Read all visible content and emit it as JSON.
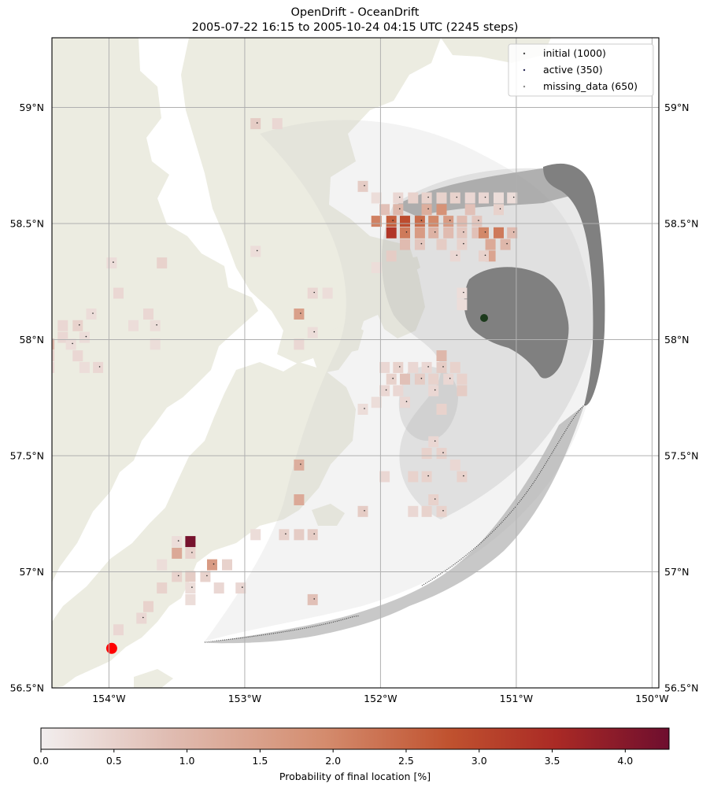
{
  "chart_data": {
    "type": "heatmap",
    "title": "OpenDrift - OceanDrift",
    "subtitle": "2005-07-22 16:15 to 2005-10-24 04:15 UTC (2245 steps)",
    "xlim": [
      -154.42,
      -149.95
    ],
    "ylim": [
      56.5,
      59.3
    ],
    "x_ticks": [
      -154,
      -153,
      -152,
      -151,
      -150
    ],
    "x_tick_labels": [
      "154°W",
      "153°W",
      "152°W",
      "151°W",
      "150°W"
    ],
    "y_ticks": [
      56.5,
      57,
      57.5,
      58,
      58.5,
      59
    ],
    "y_tick_labels": [
      "56.5°N",
      "57°N",
      "57.5°N",
      "58°N",
      "58.5°N",
      "59°N"
    ],
    "grid": true,
    "legend": {
      "placement": "top-right",
      "entries": [
        {
          "label": "initial (1000)",
          "color": "#4a4a4a"
        },
        {
          "label": "active (350)",
          "color": "#2a2a55"
        },
        {
          "label": "missing_data (650)",
          "color": "#8a8a8a"
        }
      ]
    },
    "colorbar": {
      "label": "Probability of final location [%]",
      "range": [
        0,
        4.3
      ],
      "ticks": [
        0,
        0.5,
        1,
        1.5,
        2,
        2.5,
        3,
        3.5,
        4
      ],
      "tick_labels": [
        "0.0",
        "0.5",
        "1.0",
        "1.5",
        "2.0",
        "2.5",
        "3.0",
        "3.5",
        "4.0"
      ],
      "colors": [
        "#f2eeee",
        "#e0bdb3",
        "#d48c6e",
        "#c0522f",
        "#aa2a25",
        "#6e0e2e"
      ]
    },
    "seed_point": {
      "lon": -153.98,
      "lat": 56.67,
      "color": "#ff0000"
    },
    "colors": {
      "land": "#ecece1",
      "trajectory": "#808080",
      "grid": "#b0b0b0"
    },
    "cells": [
      [
        -152.92,
        58.93,
        0.6
      ],
      [
        -152.76,
        58.93,
        0.4
      ],
      [
        -152.13,
        58.66,
        0.6
      ],
      [
        -152.03,
        58.61,
        0.3
      ],
      [
        -151.87,
        58.61,
        0.4
      ],
      [
        -151.76,
        58.61,
        0.5
      ],
      [
        -151.66,
        58.61,
        0.5
      ],
      [
        -151.55,
        58.61,
        0.5
      ],
      [
        -151.45,
        58.61,
        0.5
      ],
      [
        -151.34,
        58.61,
        0.4
      ],
      [
        -151.24,
        58.61,
        0.4
      ],
      [
        -151.13,
        58.61,
        0.3
      ],
      [
        -151.03,
        58.61,
        0.3
      ],
      [
        -151.97,
        58.56,
        0.8
      ],
      [
        -151.87,
        58.56,
        1.0
      ],
      [
        -151.55,
        58.56,
        1.8
      ],
      [
        -151.66,
        58.56,
        1.2
      ],
      [
        -151.34,
        58.56,
        0.8
      ],
      [
        -151.13,
        58.56,
        0.5
      ],
      [
        -152.03,
        58.51,
        2.1
      ],
      [
        -151.92,
        58.51,
        2.6
      ],
      [
        -151.82,
        58.51,
        2.9
      ],
      [
        -151.71,
        58.51,
        2.4
      ],
      [
        -151.61,
        58.51,
        2.0
      ],
      [
        -151.5,
        58.51,
        1.6
      ],
      [
        -151.4,
        58.51,
        0.9
      ],
      [
        -151.29,
        58.51,
        0.7
      ],
      [
        -151.92,
        58.46,
        3.3
      ],
      [
        -151.82,
        58.46,
        2.2
      ],
      [
        -151.71,
        58.46,
        1.6
      ],
      [
        -151.61,
        58.46,
        1.1
      ],
      [
        -151.5,
        58.46,
        0.9
      ],
      [
        -151.4,
        58.46,
        0.7
      ],
      [
        -151.29,
        58.46,
        0.8
      ],
      [
        -151.24,
        58.46,
        2.0
      ],
      [
        -151.13,
        58.46,
        2.2
      ],
      [
        -151.03,
        58.46,
        0.9
      ],
      [
        -151.82,
        58.41,
        0.9
      ],
      [
        -151.71,
        58.41,
        0.7
      ],
      [
        -151.55,
        58.41,
        0.6
      ],
      [
        -151.4,
        58.41,
        0.5
      ],
      [
        -151.19,
        58.41,
        1.3
      ],
      [
        -151.08,
        58.41,
        1.0
      ],
      [
        -151.92,
        58.36,
        0.6
      ],
      [
        -151.45,
        58.36,
        0.4
      ],
      [
        -151.19,
        58.36,
        1.4
      ],
      [
        -151.24,
        58.36,
        0.5
      ],
      [
        -152.03,
        58.31,
        0.3
      ],
      [
        -153.98,
        58.33,
        0.3
      ],
      [
        -153.61,
        58.33,
        0.5
      ],
      [
        -152.92,
        58.38,
        0.3
      ],
      [
        -153.93,
        58.2,
        0.4
      ],
      [
        -152.5,
        58.2,
        0.4
      ],
      [
        -152.39,
        58.2,
        0.3
      ],
      [
        -151.4,
        58.2,
        0.3
      ],
      [
        -151.4,
        58.15,
        0.3
      ],
      [
        -154.13,
        58.11,
        0.3
      ],
      [
        -153.71,
        58.11,
        0.4
      ],
      [
        -152.6,
        58.11,
        1.5
      ],
      [
        -154.34,
        58.06,
        0.4
      ],
      [
        -154.23,
        58.06,
        0.5
      ],
      [
        -153.82,
        58.06,
        0.3
      ],
      [
        -153.66,
        58.06,
        0.3
      ],
      [
        -154.34,
        58.01,
        0.4
      ],
      [
        -154.18,
        58.01,
        0.3
      ],
      [
        -152.6,
        57.98,
        0.4
      ],
      [
        -152.5,
        58.03,
        0.3
      ],
      [
        -154.44,
        57.98,
        1.0
      ],
      [
        -154.28,
        57.98,
        0.3
      ],
      [
        -153.66,
        57.98,
        0.3
      ],
      [
        -154.44,
        57.93,
        0.5
      ],
      [
        -154.23,
        57.93,
        0.4
      ],
      [
        -154.44,
        57.88,
        0.4
      ],
      [
        -154.18,
        57.88,
        0.3
      ],
      [
        -154.08,
        57.88,
        0.4
      ],
      [
        -151.97,
        57.88,
        0.4
      ],
      [
        -151.87,
        57.88,
        0.5
      ],
      [
        -151.76,
        57.88,
        0.4
      ],
      [
        -151.66,
        57.88,
        0.4
      ],
      [
        -151.55,
        57.93,
        1.0
      ],
      [
        -151.55,
        57.88,
        0.6
      ],
      [
        -151.45,
        57.88,
        0.5
      ],
      [
        -151.92,
        57.83,
        0.5
      ],
      [
        -151.82,
        57.83,
        0.8
      ],
      [
        -151.71,
        57.83,
        0.6
      ],
      [
        -151.61,
        57.83,
        0.5
      ],
      [
        -151.5,
        57.83,
        0.4
      ],
      [
        -151.4,
        57.83,
        0.5
      ],
      [
        -151.97,
        57.78,
        0.4
      ],
      [
        -151.87,
        57.78,
        0.4
      ],
      [
        -151.61,
        57.78,
        0.4
      ],
      [
        -151.4,
        57.78,
        0.6
      ],
      [
        -151.82,
        57.73,
        0.4
      ],
      [
        -152.03,
        57.73,
        0.3
      ],
      [
        -152.13,
        57.7,
        0.3
      ],
      [
        -151.55,
        57.7,
        0.5
      ],
      [
        -151.61,
        57.56,
        0.4
      ],
      [
        -151.66,
        57.51,
        0.5
      ],
      [
        -151.55,
        57.51,
        0.5
      ],
      [
        -151.45,
        57.46,
        0.4
      ],
      [
        -151.4,
        57.41,
        0.5
      ],
      [
        -151.76,
        57.41,
        0.5
      ],
      [
        -151.66,
        57.41,
        0.5
      ],
      [
        -151.97,
        57.41,
        0.4
      ],
      [
        -152.6,
        57.46,
        1.2
      ],
      [
        -152.6,
        57.31,
        1.3
      ],
      [
        -151.61,
        57.31,
        0.5
      ],
      [
        -151.66,
        57.26,
        0.5
      ],
      [
        -151.55,
        57.26,
        0.5
      ],
      [
        -151.76,
        57.26,
        0.4
      ],
      [
        -152.13,
        57.26,
        0.6
      ],
      [
        -152.92,
        57.16,
        0.3
      ],
      [
        -152.71,
        57.16,
        0.5
      ],
      [
        -152.6,
        57.16,
        0.6
      ],
      [
        -152.5,
        57.16,
        0.6
      ],
      [
        -153.4,
        57.13,
        4.2
      ],
      [
        -153.5,
        57.13,
        0.3
      ],
      [
        -153.5,
        57.08,
        1.3
      ],
      [
        -153.4,
        57.08,
        0.5
      ],
      [
        -153.61,
        57.03,
        0.3
      ],
      [
        -153.24,
        57.03,
        1.6
      ],
      [
        -153.13,
        57.03,
        0.5
      ],
      [
        -153.5,
        56.98,
        0.5
      ],
      [
        -153.4,
        56.98,
        0.6
      ],
      [
        -153.29,
        56.98,
        0.5
      ],
      [
        -153.61,
        56.93,
        0.5
      ],
      [
        -153.4,
        56.93,
        0.3
      ],
      [
        -153.19,
        56.93,
        0.4
      ],
      [
        -153.03,
        56.93,
        0.4
      ],
      [
        -153.4,
        56.88,
        0.3
      ],
      [
        -152.5,
        56.88,
        0.8
      ],
      [
        -153.71,
        56.85,
        0.5
      ],
      [
        -153.76,
        56.8,
        0.4
      ],
      [
        -153.93,
        56.75,
        0.4
      ]
    ]
  }
}
